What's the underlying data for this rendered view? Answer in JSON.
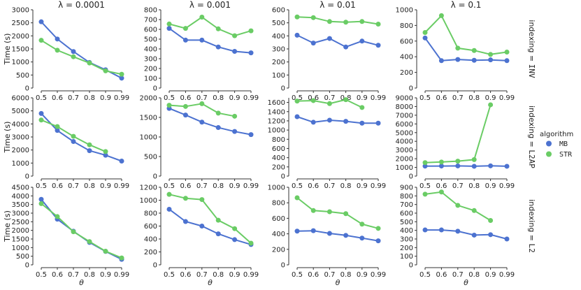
{
  "chart_data": {
    "type": "line",
    "layout": "faceted-grid",
    "x": [
      "0.5",
      "0.6",
      "0.7",
      "0.8",
      "0.9",
      "0.99"
    ],
    "xlabel": "θ",
    "ylabel": "Time (s)",
    "col_titles": [
      "λ = 0.0001",
      "λ = 0.001",
      "λ = 0.01",
      "λ = 0.1"
    ],
    "row_label_prefix": "indexing = ",
    "row_labels": [
      "INV",
      "L2AP",
      "L2"
    ],
    "legend": {
      "title": "algorithm",
      "entries": [
        {
          "name": "MB",
          "color": "#4c72d0"
        },
        {
          "name": "STR",
          "color": "#6acc65"
        }
      ],
      "placement": "right"
    },
    "panels": [
      {
        "row": 0,
        "col": 0,
        "ylim": [
          0,
          3000
        ],
        "yticks": [
          0,
          500,
          1000,
          1500,
          2000,
          2500,
          3000
        ],
        "series": [
          {
            "name": "MB",
            "values": [
              2540,
              1880,
              1400,
              980,
              700,
              380
            ]
          },
          {
            "name": "STR",
            "values": [
              1830,
              1450,
              1200,
              960,
              660,
              530
            ]
          }
        ]
      },
      {
        "row": 0,
        "col": 1,
        "ylim": [
          0,
          800
        ],
        "yticks": [
          0,
          100,
          200,
          300,
          400,
          500,
          600,
          700,
          800
        ],
        "series": [
          {
            "name": "MB",
            "values": [
              610,
              490,
              490,
              420,
              375,
              360
            ]
          },
          {
            "name": "STR",
            "values": [
              655,
              610,
              725,
              605,
              535,
              585
            ]
          }
        ]
      },
      {
        "row": 0,
        "col": 2,
        "ylim": [
          0,
          600
        ],
        "yticks": [
          0,
          100,
          200,
          300,
          400,
          500,
          600
        ],
        "series": [
          {
            "name": "MB",
            "values": [
              405,
              345,
              380,
              315,
              360,
              328
            ]
          },
          {
            "name": "STR",
            "values": [
              545,
              540,
              510,
              505,
              510,
              490
            ]
          }
        ]
      },
      {
        "row": 0,
        "col": 3,
        "ylim": [
          0,
          1000
        ],
        "yticks": [
          0,
          200,
          400,
          600,
          800,
          1000
        ],
        "series": [
          {
            "name": "MB",
            "values": [
              640,
              350,
              365,
              355,
              360,
              350
            ]
          },
          {
            "name": "STR",
            "values": [
              710,
              925,
              510,
              480,
              430,
              460
            ]
          }
        ]
      },
      {
        "row": 1,
        "col": 0,
        "ylim": [
          0,
          6000
        ],
        "yticks": [
          0,
          1000,
          2000,
          3000,
          4000,
          5000,
          6000
        ],
        "series": [
          {
            "name": "MB",
            "values": [
              4800,
              3500,
              2650,
              1950,
              1600,
              1150
            ]
          },
          {
            "name": "STR",
            "values": [
              4300,
              3800,
              3050,
              2400,
              1880,
              null
            ]
          }
        ]
      },
      {
        "row": 1,
        "col": 1,
        "ylim": [
          0,
          2000
        ],
        "yticks": [
          0,
          500,
          1000,
          1500,
          2000
        ],
        "series": [
          {
            "name": "MB",
            "values": [
              1730,
              1560,
              1380,
              1240,
              1140,
              1060
            ]
          },
          {
            "name": "STR",
            "values": [
              1810,
              1780,
              1850,
              1610,
              1530,
              null
            ]
          }
        ]
      },
      {
        "row": 1,
        "col": 2,
        "ylim": [
          0,
          1700
        ],
        "yticks": [
          0,
          200,
          400,
          600,
          800,
          1000,
          1200,
          1400,
          1600
        ],
        "series": [
          {
            "name": "MB",
            "values": [
              1290,
              1170,
              1215,
              1190,
              1150,
              1150
            ]
          },
          {
            "name": "STR",
            "values": [
              1630,
              1640,
              1575,
              1660,
              1490,
              null
            ]
          }
        ]
      },
      {
        "row": 1,
        "col": 3,
        "ylim": [
          0,
          9000
        ],
        "yticks": [
          0,
          1000,
          2000,
          3000,
          4000,
          5000,
          6000,
          7000,
          8000,
          9000
        ],
        "series": [
          {
            "name": "MB",
            "values": [
              1150,
              1160,
              1170,
              1130,
              1180,
              1130
            ]
          },
          {
            "name": "STR",
            "values": [
              1550,
              1620,
              1720,
              1900,
              8200,
              null
            ]
          }
        ]
      },
      {
        "row": 2,
        "col": 0,
        "ylim": [
          0,
          4500
        ],
        "yticks": [
          0,
          500,
          1000,
          1500,
          2000,
          2500,
          3000,
          3500,
          4000,
          4500
        ],
        "series": [
          {
            "name": "MB",
            "values": [
              3800,
              2650,
              1950,
              1300,
              780,
              320
            ]
          },
          {
            "name": "STR",
            "values": [
              3550,
              2800,
              1920,
              1350,
              790,
              400
            ]
          }
        ]
      },
      {
        "row": 2,
        "col": 1,
        "ylim": [
          0,
          1200
        ],
        "yticks": [
          0,
          200,
          400,
          600,
          800,
          1000,
          1200
        ],
        "series": [
          {
            "name": "MB",
            "values": [
              860,
              670,
              600,
              480,
              390,
              315
            ]
          },
          {
            "name": "STR",
            "values": [
              1090,
              1030,
              1010,
              690,
              560,
              335
            ]
          }
        ]
      },
      {
        "row": 2,
        "col": 2,
        "ylim": [
          0,
          1000
        ],
        "yticks": [
          0,
          200,
          400,
          600,
          800,
          1000
        ],
        "series": [
          {
            "name": "MB",
            "values": [
              435,
              440,
              405,
              380,
              345,
              310
            ]
          },
          {
            "name": "STR",
            "values": [
              865,
              700,
              685,
              660,
              525,
              470
            ]
          }
        ]
      },
      {
        "row": 2,
        "col": 3,
        "ylim": [
          0,
          900
        ],
        "yticks": [
          0,
          100,
          200,
          300,
          400,
          500,
          600,
          700,
          800,
          900
        ],
        "series": [
          {
            "name": "MB",
            "values": [
              405,
              405,
              390,
              345,
              350,
              300
            ]
          },
          {
            "name": "STR",
            "values": [
              820,
              845,
              690,
              630,
              515,
              null
            ]
          }
        ]
      }
    ]
  }
}
